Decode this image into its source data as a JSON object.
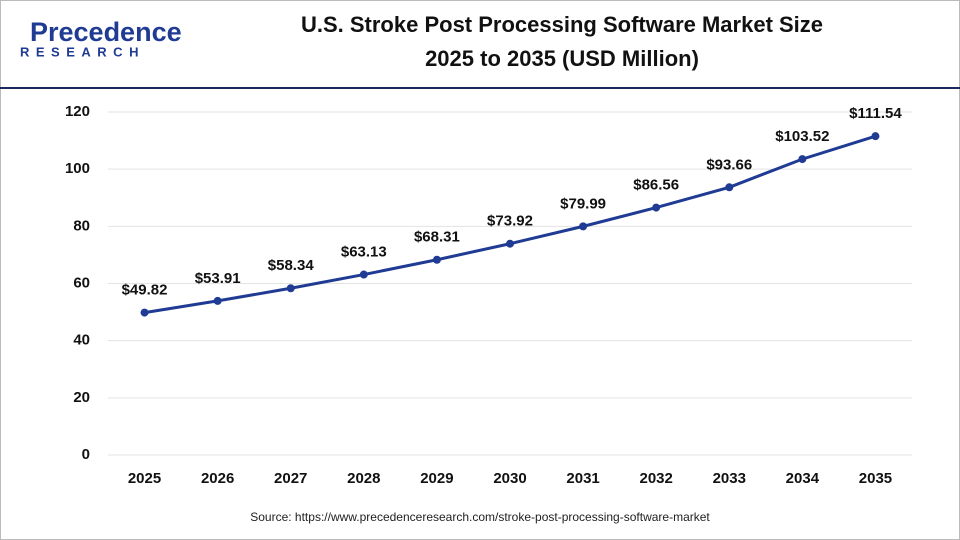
{
  "logo": {
    "name": "Precedence",
    "tagline": "RESEARCH"
  },
  "chart_data": {
    "type": "line",
    "title_lines": [
      "U.S. Stroke Post Processing Software Market Size",
      "2025 to 2035 (USD Million)"
    ],
    "categories": [
      "2025",
      "2026",
      "2027",
      "2028",
      "2029",
      "2030",
      "2031",
      "2032",
      "2033",
      "2034",
      "2035"
    ],
    "values": [
      49.82,
      53.91,
      58.34,
      63.13,
      68.31,
      73.92,
      79.99,
      86.56,
      93.66,
      103.52,
      111.54
    ],
    "value_labels": [
      "$49.82",
      "$53.91",
      "$58.34",
      "$63.13",
      "$68.31",
      "$73.92",
      "$79.99",
      "$86.56",
      "$93.66",
      "$103.52",
      "$111.54"
    ],
    "color": "#1f3b93",
    "ylim": [
      0,
      120
    ],
    "yticks": [
      0,
      20,
      40,
      60,
      80,
      100,
      120
    ],
    "grid": true,
    "source": "Source: https://www.precedenceresearch.com/stroke-post-processing-software-market"
  }
}
